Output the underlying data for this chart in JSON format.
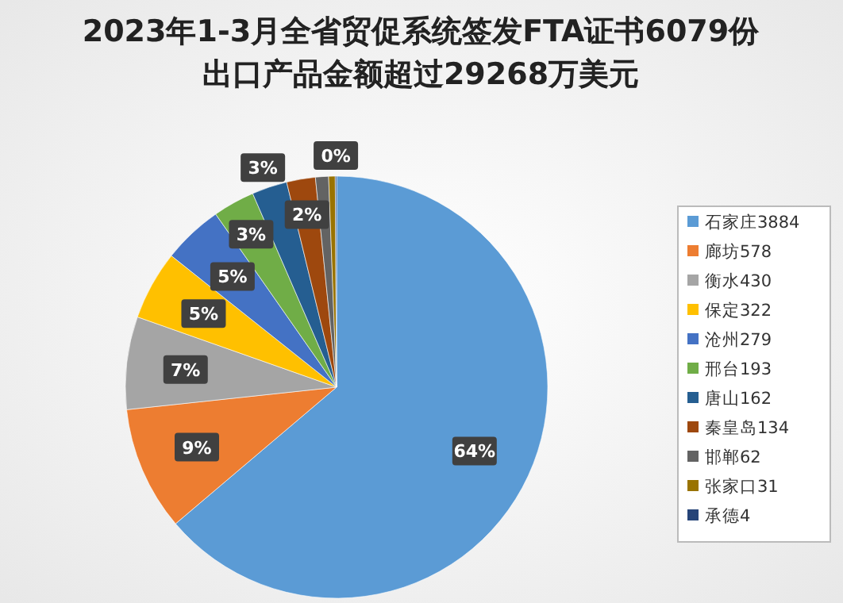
{
  "chart_data": {
    "type": "pie",
    "title": "2023年1-3月全省贸促系统签发FTA证书6079份",
    "subtitle": "出口产品金额超过29268万美元",
    "categories": [
      "石家庄3884",
      "廊坊578",
      "衡水430",
      "保定322",
      "沧州279",
      "邢台193",
      "唐山162",
      "秦皇岛134",
      "邯郸62",
      "张家口31",
      "承德4"
    ],
    "values": [
      63.8,
      9.5,
      7.1,
      5.3,
      4.6,
      3.2,
      2.7,
      2.2,
      1.0,
      0.5,
      0.1
    ],
    "colors": [
      "#5b9bd5",
      "#ed7d31",
      "#a5a5a5",
      "#ffc000",
      "#4472c4",
      "#70ad47",
      "#255e91",
      "#9e480e",
      "#636363",
      "#997300",
      "#264478"
    ],
    "value_labels": [
      "64%",
      "9%",
      "7%",
      "5%",
      "5%",
      "3%",
      "3%",
      "2%",
      null,
      null,
      "0%"
    ],
    "legend": "right"
  }
}
